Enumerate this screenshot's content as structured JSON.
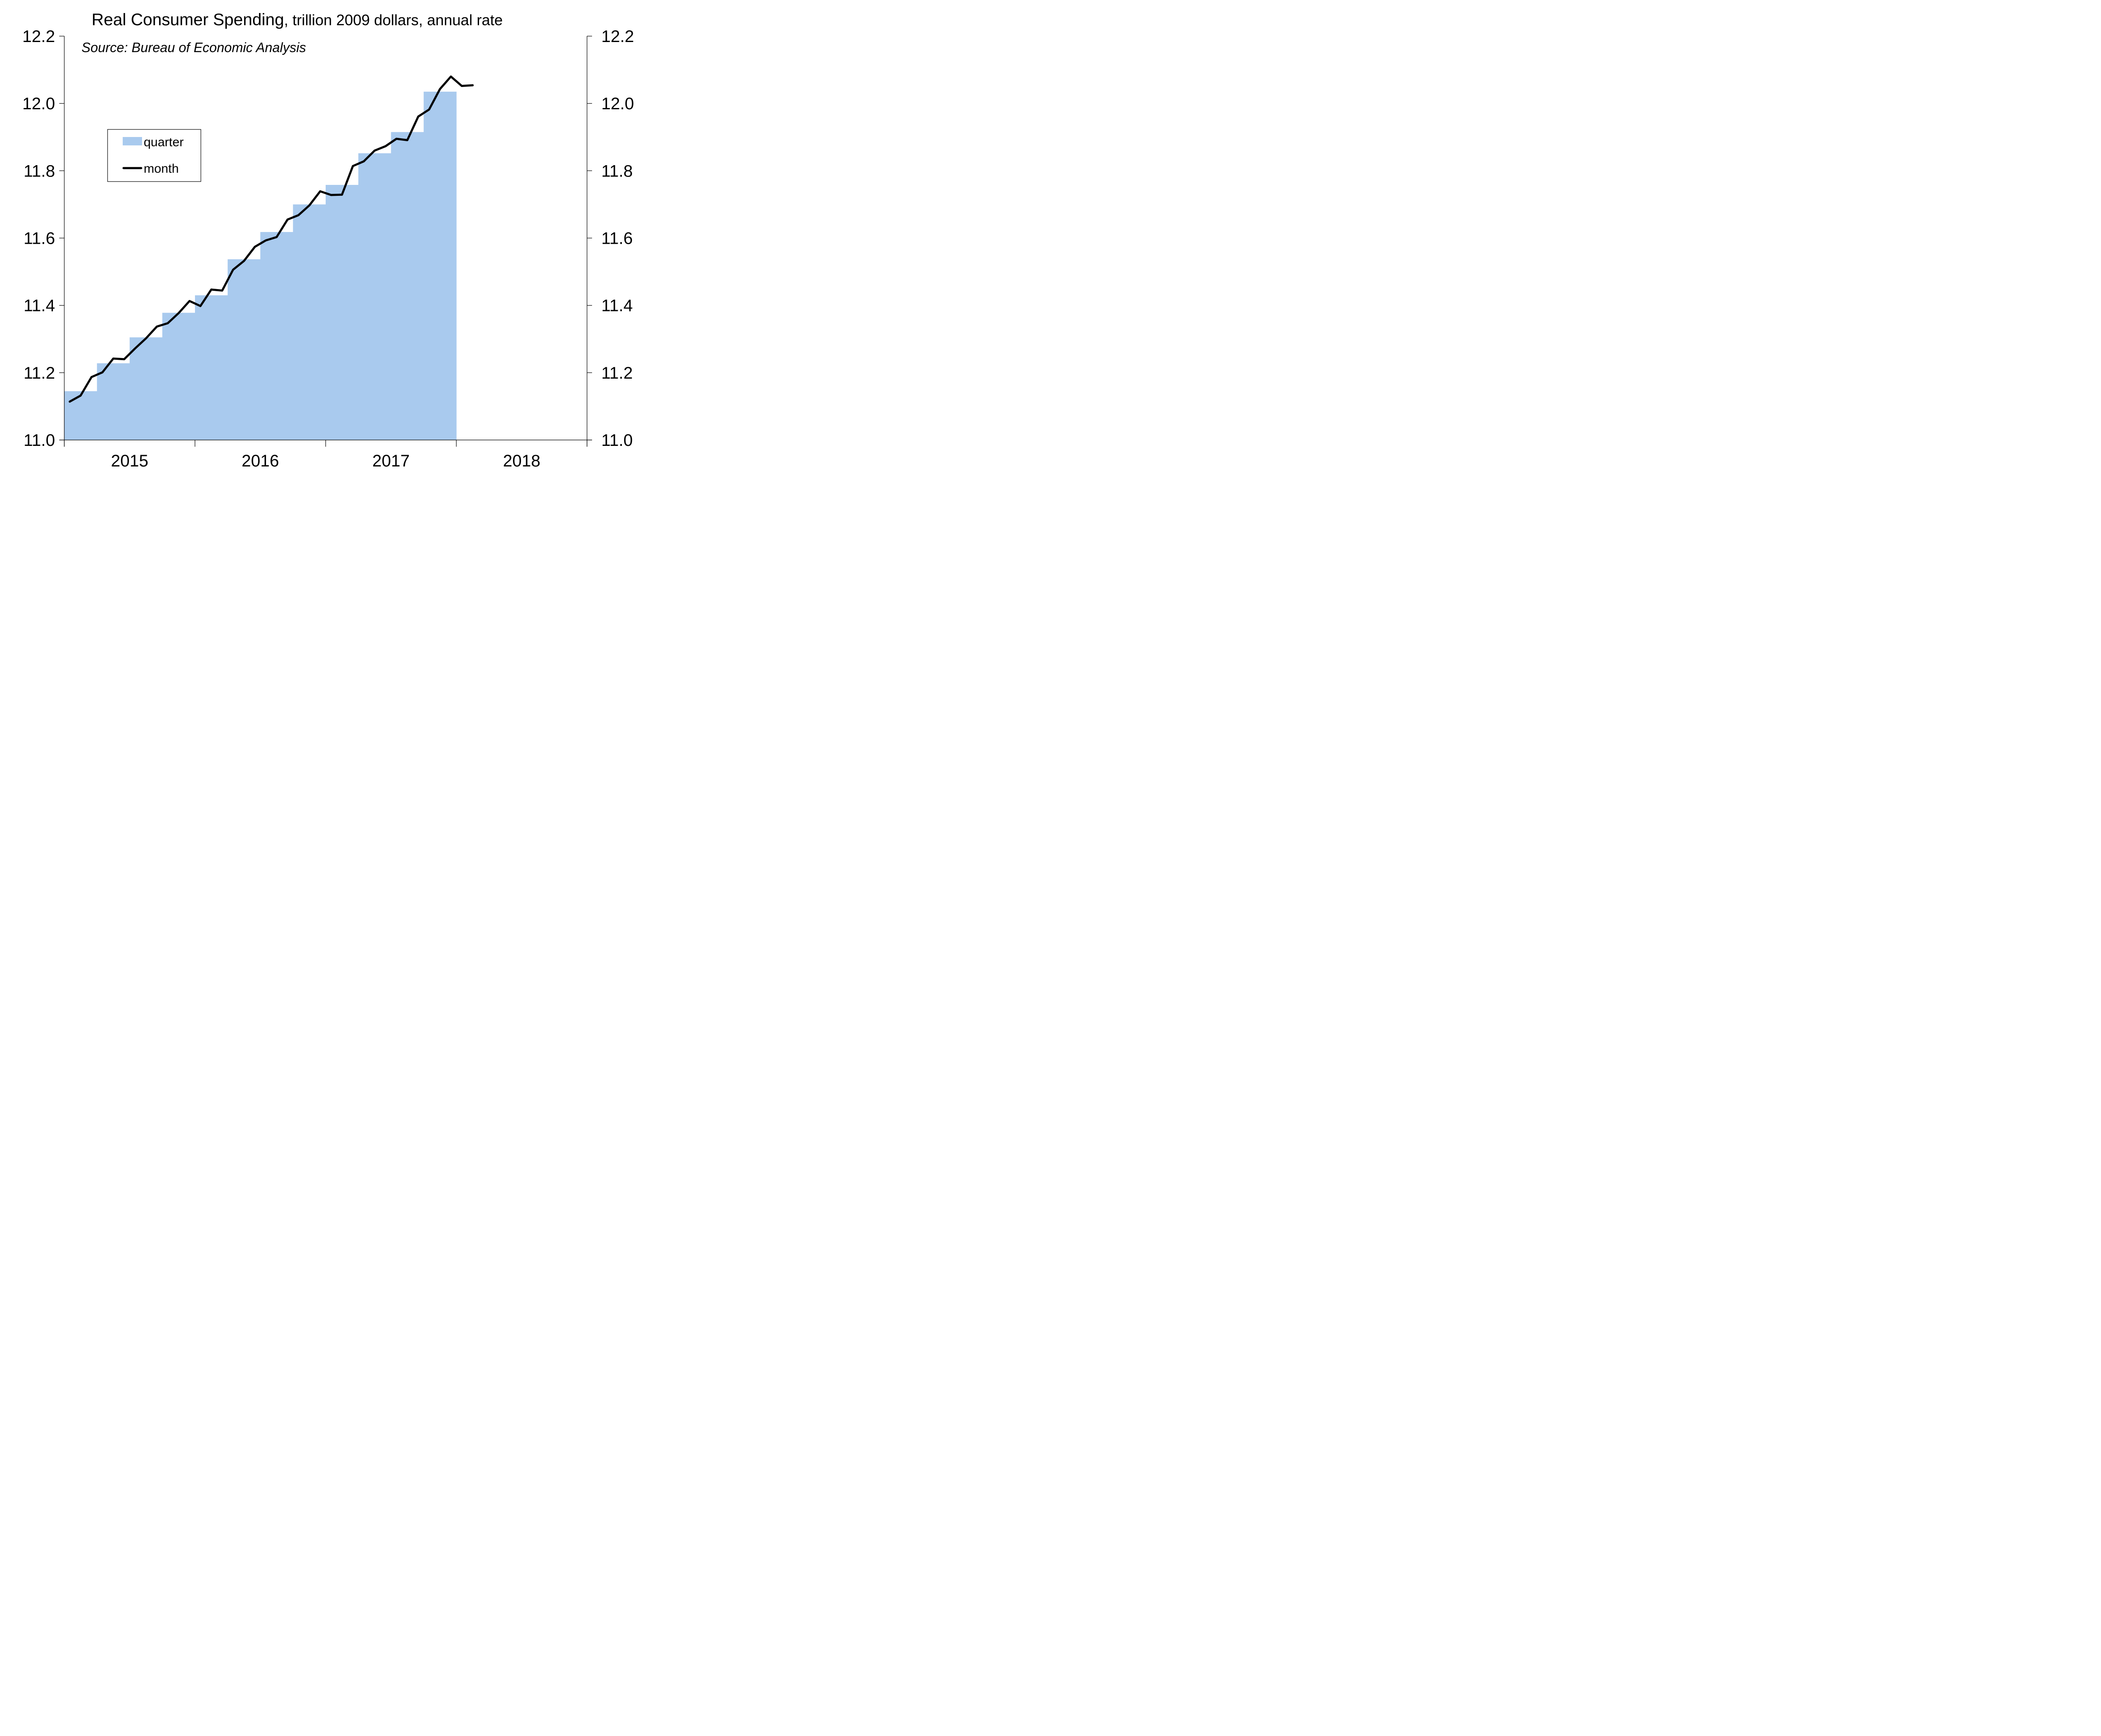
{
  "chart_data": {
    "type": "bar",
    "title": "Real Consumer Spending",
    "subtitle": ", trillion 2009 dollars, annual rate",
    "source": "Source: Bureau of Economic Analysis",
    "xlabel": "",
    "ylabel": "",
    "ylim": [
      11.0,
      12.2
    ],
    "yticks": [
      "11.0",
      "11.2",
      "11.4",
      "11.6",
      "11.8",
      "12.0",
      "12.2"
    ],
    "ytick_values": [
      11.0,
      11.2,
      11.4,
      11.6,
      11.8,
      12.0,
      12.2
    ],
    "xrange_months": [
      "2015-01",
      "2018-12"
    ],
    "xtick_labels": [
      "2015",
      "2016",
      "2017",
      "2018"
    ],
    "grid": false,
    "legend": {
      "placement": "upper-left",
      "entries": [
        {
          "name": "quarter",
          "kind": "bar",
          "color": "#A9CAEE"
        },
        {
          "name": "month",
          "kind": "line",
          "color": "#000000"
        }
      ]
    },
    "series": [
      {
        "name": "quarter",
        "type": "step-bar",
        "color": "#A9CAEE",
        "categories": [
          "2015Q1",
          "2015Q2",
          "2015Q3",
          "2015Q4",
          "2016Q1",
          "2016Q2",
          "2016Q3",
          "2016Q4",
          "2017Q1",
          "2017Q2",
          "2017Q3",
          "2017Q4"
        ],
        "values": [
          11.145,
          11.228,
          11.305,
          11.378,
          11.43,
          11.537,
          11.618,
          11.7,
          11.758,
          11.852,
          11.915,
          12.035
        ]
      },
      {
        "name": "month",
        "type": "line",
        "color": "#000000",
        "categories": [
          "2015-01",
          "2015-02",
          "2015-03",
          "2015-04",
          "2015-05",
          "2015-06",
          "2015-07",
          "2015-08",
          "2015-09",
          "2015-10",
          "2015-11",
          "2015-12",
          "2016-01",
          "2016-02",
          "2016-03",
          "2016-04",
          "2016-05",
          "2016-06",
          "2016-07",
          "2016-08",
          "2016-09",
          "2016-10",
          "2016-11",
          "2016-12",
          "2017-01",
          "2017-02",
          "2017-03",
          "2017-04",
          "2017-05",
          "2017-06",
          "2017-07",
          "2017-08",
          "2017-09",
          "2017-10",
          "2017-11",
          "2017-12",
          "2018-01",
          "2018-02"
        ],
        "values": [
          11.114,
          11.132,
          11.187,
          11.201,
          11.242,
          11.24,
          11.272,
          11.302,
          11.337,
          11.347,
          11.377,
          11.413,
          11.398,
          11.447,
          11.444,
          11.506,
          11.532,
          11.574,
          11.593,
          11.603,
          11.655,
          11.668,
          11.697,
          11.739,
          11.728,
          11.729,
          11.814,
          11.828,
          11.86,
          11.873,
          11.895,
          11.891,
          11.961,
          11.982,
          12.043,
          12.08,
          12.052,
          12.054
        ]
      }
    ]
  }
}
